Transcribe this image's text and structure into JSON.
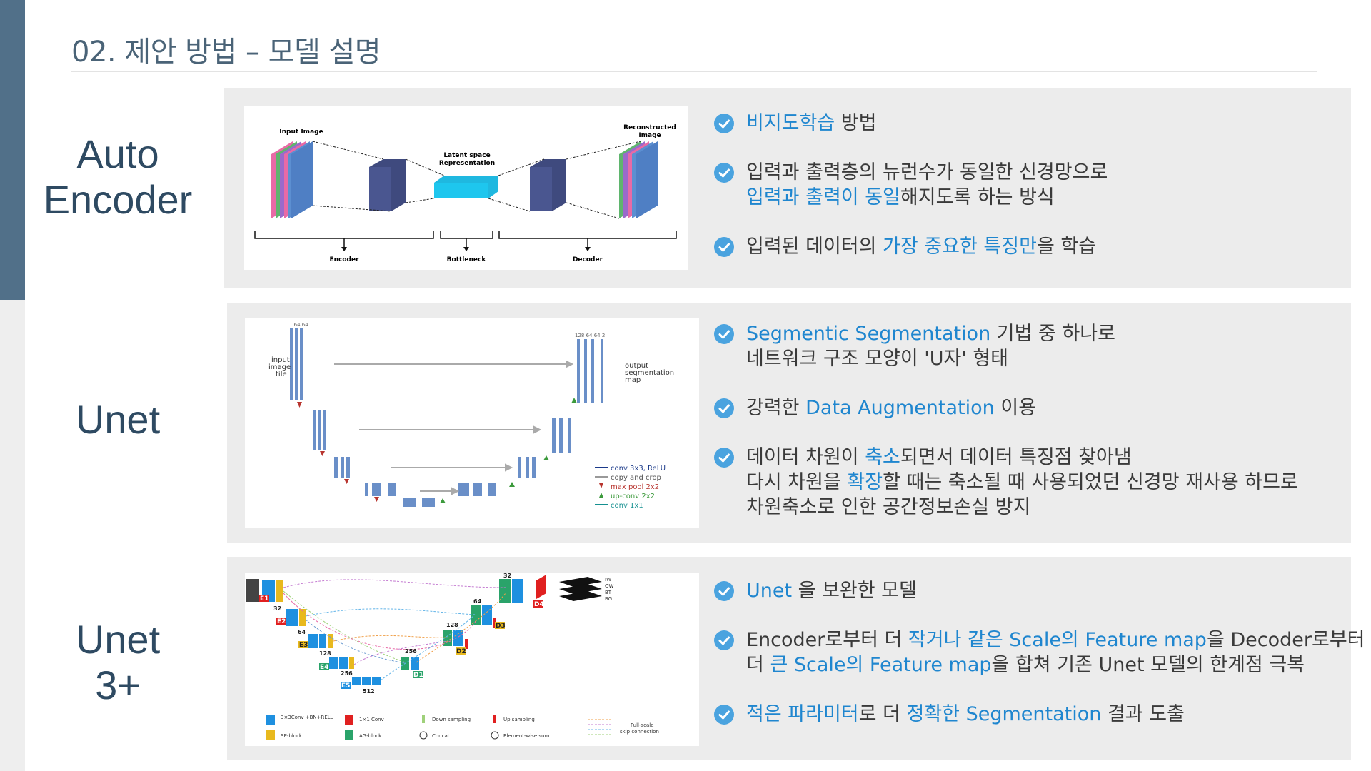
{
  "title": "02. 제안 방법 – 모델 설명",
  "colors": {
    "accent_bar": "#517089",
    "label": "#2e4a62",
    "highlight": "#1f86cf",
    "panel": "#ececec"
  },
  "sections": [
    {
      "label_lines": [
        "Auto",
        "Encoder"
      ],
      "figure": {
        "input_label": "Input Image",
        "latent_label_1": "Latent space",
        "latent_label_2": "Representation",
        "recon_label_1": "Reconstructed",
        "recon_label_2": "Image",
        "encoder_label": "Encoder",
        "bottleneck_label": "Bottleneck",
        "decoder_label": "Decoder"
      },
      "bullets": [
        {
          "lines": [
            [
              {
                "t": "비지도학습",
                "hl": true
              },
              {
                "t": " 방법",
                "hl": false
              }
            ]
          ]
        },
        {
          "lines": [
            [
              {
                "t": "입력과 출력층의 뉴런수가 동일한 신경망으로",
                "hl": false
              }
            ],
            [
              {
                "t": "입력과 출력이 동일",
                "hl": true
              },
              {
                "t": "해지도록 하는 방식",
                "hl": false
              }
            ]
          ]
        },
        {
          "lines": [
            [
              {
                "t": "입력된 데이터의 ",
                "hl": false
              },
              {
                "t": "가장 중요한 특징만",
                "hl": true
              },
              {
                "t": "을 학습",
                "hl": false
              }
            ]
          ]
        }
      ]
    },
    {
      "label_lines": [
        "Unet"
      ],
      "figure": {
        "input_text": [
          "input",
          "image",
          "tile"
        ],
        "output_text": [
          "output",
          "segmentation",
          "map"
        ],
        "legend": [
          "conv 3x3, ReLU",
          "copy and crop",
          "max pool 2x2",
          "up-conv 2x2",
          "conv 1x1"
        ],
        "channels_top_left": "1 64 64",
        "channels_top_right": "128 64 64 2"
      },
      "bullets": [
        {
          "lines": [
            [
              {
                "t": "Segmentic Segmentation",
                "hl": true
              },
              {
                "t": " 기법 중 하나로",
                "hl": false
              }
            ],
            [
              {
                "t": "네트워크 구조 모양이 'U자' 형태",
                "hl": false
              }
            ]
          ]
        },
        {
          "lines": [
            [
              {
                "t": "강력한 ",
                "hl": false
              },
              {
                "t": "Data Augmentation",
                "hl": true
              },
              {
                "t": " 이용",
                "hl": false
              }
            ]
          ]
        },
        {
          "lines": [
            [
              {
                "t": "데이터 차원이 ",
                "hl": false
              },
              {
                "t": "축소",
                "hl": true
              },
              {
                "t": "되면서 데이터 특징점 찾아냄",
                "hl": false
              }
            ],
            [
              {
                "t": "다시 차원을 ",
                "hl": false
              },
              {
                "t": "확장",
                "hl": true
              },
              {
                "t": "할 때는 축소될 때 사용되었던 신경망 재사용 하므로",
                "hl": false
              }
            ],
            [
              {
                "t": "차원축소로 인한 공간정보손실 방지",
                "hl": false
              }
            ]
          ]
        }
      ]
    },
    {
      "label_lines": [
        "Unet",
        "3+"
      ],
      "figure": {
        "nodes": [
          "E1",
          "E2",
          "E3",
          "E4",
          "E5",
          "D1",
          "D2",
          "D3",
          "D4"
        ],
        "numbers": [
          "32",
          "64",
          "128",
          "256",
          "512",
          "256",
          "128",
          "64",
          "32"
        ],
        "legend": [
          "3×3Conv +BN+RELU",
          "1×1 Conv",
          "Down sampling",
          "Up sampling",
          "SE-block",
          "AG-block",
          "Concat",
          "Element-wise sum",
          "Full-scale",
          "skip connection"
        ],
        "mask_labels": [
          "IW",
          "OW",
          "BT",
          "BG"
        ]
      },
      "bullets": [
        {
          "lines": [
            [
              {
                "t": "Unet",
                "hl": true
              },
              {
                "t": " 을 보완한 모델",
                "hl": false
              }
            ]
          ]
        },
        {
          "lines": [
            [
              {
                "t": "Encoder로부터 더 ",
                "hl": false
              },
              {
                "t": "작거나 같은 Scale의 Feature map",
                "hl": true
              },
              {
                "t": "을 Decoder로부터",
                "hl": false
              }
            ],
            [
              {
                "t": "더 ",
                "hl": false
              },
              {
                "t": "큰 Scale의 Feature map",
                "hl": true
              },
              {
                "t": "을 합쳐 기존 Unet 모델의 한계점 극복",
                "hl": false
              }
            ]
          ]
        },
        {
          "lines": [
            [
              {
                "t": "적은 파라미터",
                "hl": true
              },
              {
                "t": "로 더 ",
                "hl": false
              },
              {
                "t": "정확한 Segmentation",
                "hl": true
              },
              {
                "t": " 결과 도출",
                "hl": false
              }
            ]
          ]
        }
      ]
    }
  ]
}
